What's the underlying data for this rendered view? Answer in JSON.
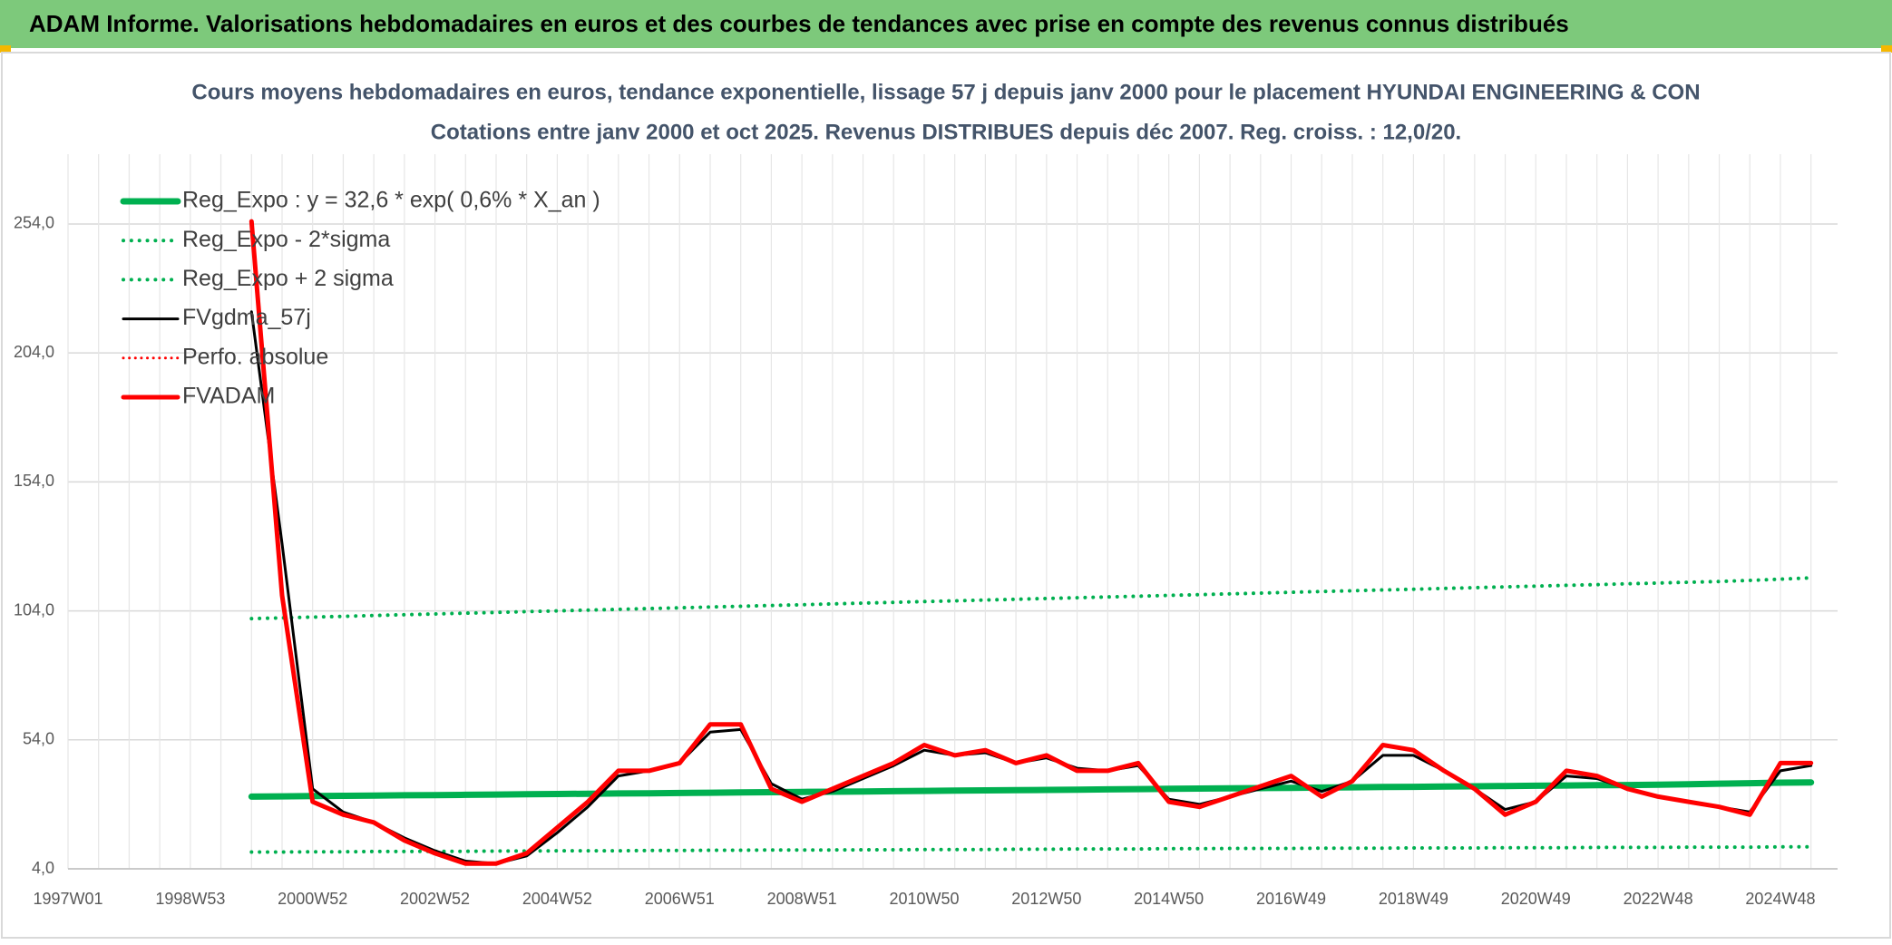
{
  "banner": {
    "title": "ADAM Informe. Valorisations hebdomadaires en euros et des courbes de tendances avec prise en compte des revenus connus distribués"
  },
  "chart_data": {
    "type": "line",
    "title": "Cours moyens hebdomadaires en euros, tendance exponentielle, lissage 57 j depuis janv 2000 pour le placement HYUNDAI ENGINEERING & CON",
    "subtitle": "Cotations entre janv 2000 et oct 2025. Revenus DISTRIBUES depuis déc 2007. Reg. croiss. : 12,0/20.",
    "categories": [
      "1997W01",
      null,
      null,
      null,
      "1998W53",
      null,
      null,
      null,
      "2000W52",
      null,
      null,
      null,
      "2002W52",
      null,
      null,
      null,
      "2004W52",
      null,
      null,
      null,
      "2006W51",
      null,
      null,
      null,
      "2008W51",
      null,
      null,
      null,
      "2010W50",
      null,
      null,
      null,
      "2012W50",
      null,
      null,
      null,
      "2014W50",
      null,
      null,
      null,
      "2016W49",
      null,
      null,
      null,
      "2018W49",
      null,
      null,
      null,
      "2020W49",
      null,
      null,
      null,
      "2022W48",
      null,
      null,
      null,
      "2024W48",
      null
    ],
    "ylim": [
      4,
      280
    ],
    "yticks": [
      {
        "value": 4,
        "label": "4,0"
      },
      {
        "value": 54,
        "label": "54,0"
      },
      {
        "value": 104,
        "label": "104,0"
      },
      {
        "value": 154,
        "label": "154,0"
      },
      {
        "value": 204,
        "label": "204,0"
      },
      {
        "value": 254,
        "label": "254,0"
      }
    ],
    "grid": true,
    "legend": "top-left",
    "series": [
      {
        "name": "Reg_Expo : y = 32,6 * exp( 0,6% *  X_an )",
        "color": "#00b050",
        "dash": "solid",
        "width": 7,
        "values": [
          null,
          null,
          null,
          null,
          null,
          null,
          32,
          32.1,
          32.2,
          32.3,
          32.4,
          32.5,
          32.6,
          32.7,
          32.8,
          32.9,
          33,
          33.1,
          33.2,
          33.3,
          33.4,
          33.5,
          33.6,
          33.7,
          33.8,
          33.9,
          34,
          34.1,
          34.2,
          34.3,
          34.4,
          34.5,
          34.6,
          34.7,
          34.8,
          34.9,
          35,
          35.1,
          35.2,
          35.3,
          35.4,
          35.5,
          35.6,
          35.7,
          35.8,
          35.9,
          36,
          36.1,
          36.2,
          36.3,
          36.4,
          36.5,
          36.6,
          36.8,
          37,
          37.2,
          37.4,
          37.5
        ]
      },
      {
        "name": "Reg_Expo - 2*sigma",
        "color": "#00b050",
        "dash": "dot",
        "width": 4,
        "values": [
          null,
          null,
          null,
          null,
          null,
          null,
          10.5,
          10.5,
          10.6,
          10.6,
          10.7,
          10.7,
          10.8,
          10.8,
          10.9,
          10.9,
          11,
          11,
          11,
          11.1,
          11.1,
          11.2,
          11.2,
          11.3,
          11.3,
          11.3,
          11.4,
          11.4,
          11.5,
          11.5,
          11.5,
          11.6,
          11.6,
          11.7,
          11.7,
          11.7,
          11.8,
          11.8,
          11.9,
          11.9,
          11.9,
          12,
          12,
          12,
          12.1,
          12.1,
          12.1,
          12.2,
          12.2,
          12.2,
          12.3,
          12.3,
          12.3,
          12.4,
          12.4,
          12.4,
          12.5,
          12.5
        ]
      },
      {
        "name": "Reg_Expo + 2 sigma",
        "color": "#00b050",
        "dash": "dot",
        "width": 4,
        "values": [
          null,
          null,
          null,
          null,
          null,
          null,
          101,
          101.3,
          101.6,
          101.9,
          102.2,
          102.5,
          102.8,
          103.1,
          103.4,
          103.7,
          104,
          104.3,
          104.6,
          104.9,
          105.2,
          105.5,
          105.8,
          106.1,
          106.4,
          106.7,
          107,
          107.3,
          107.6,
          107.9,
          108.2,
          108.5,
          108.8,
          109.1,
          109.4,
          109.7,
          110,
          110.3,
          110.6,
          110.9,
          111.2,
          111.5,
          111.8,
          112.1,
          112.4,
          112.7,
          113,
          113.3,
          113.6,
          113.9,
          114.2,
          114.5,
          114.8,
          115.1,
          115.4,
          115.8,
          116.3,
          116.8
        ]
      },
      {
        "name": "FVgdma_57j",
        "color": "#000000",
        "dash": "solid",
        "width": 3,
        "values": [
          null,
          null,
          null,
          null,
          null,
          null,
          220,
          130,
          35,
          26,
          22,
          16,
          11,
          7,
          6,
          9,
          18,
          28,
          40,
          42,
          45,
          57,
          58,
          37,
          31,
          34,
          39,
          44,
          50,
          48,
          49,
          45,
          47,
          43,
          42,
          44,
          31,
          29,
          32,
          35,
          38,
          34,
          38,
          48,
          48,
          42,
          35,
          27,
          30,
          40,
          39,
          35,
          32,
          30,
          28,
          26,
          42,
          44
        ]
      },
      {
        "name": "Perfo. absolue",
        "color": "#ff0000",
        "dash": "dot",
        "width": 3,
        "values": [
          null,
          null,
          null,
          null,
          null,
          null,
          null,
          null,
          null,
          null,
          null,
          null,
          null,
          null,
          null,
          null,
          null,
          null,
          null,
          null,
          null,
          null,
          null,
          null,
          null,
          null,
          null,
          null,
          null,
          null,
          null,
          null,
          null,
          null,
          null,
          null,
          null,
          null,
          null,
          null,
          null,
          null,
          null,
          null,
          null,
          null,
          null,
          null,
          null,
          null,
          null,
          null,
          null,
          null,
          null,
          null,
          null,
          null
        ]
      },
      {
        "name": "FVADAM",
        "color": "#ff0000",
        "dash": "solid",
        "width": 5,
        "values": [
          null,
          null,
          null,
          null,
          null,
          null,
          255,
          110,
          30,
          25,
          22,
          15,
          10,
          6,
          6,
          10,
          20,
          30,
          42,
          42,
          45,
          60,
          60,
          35,
          30,
          35,
          40,
          45,
          52,
          48,
          50,
          45,
          48,
          42,
          42,
          45,
          30,
          28,
          32,
          36,
          40,
          32,
          38,
          52,
          50,
          42,
          35,
          25,
          30,
          42,
          40,
          35,
          32,
          30,
          28,
          25,
          45,
          45
        ]
      }
    ]
  }
}
